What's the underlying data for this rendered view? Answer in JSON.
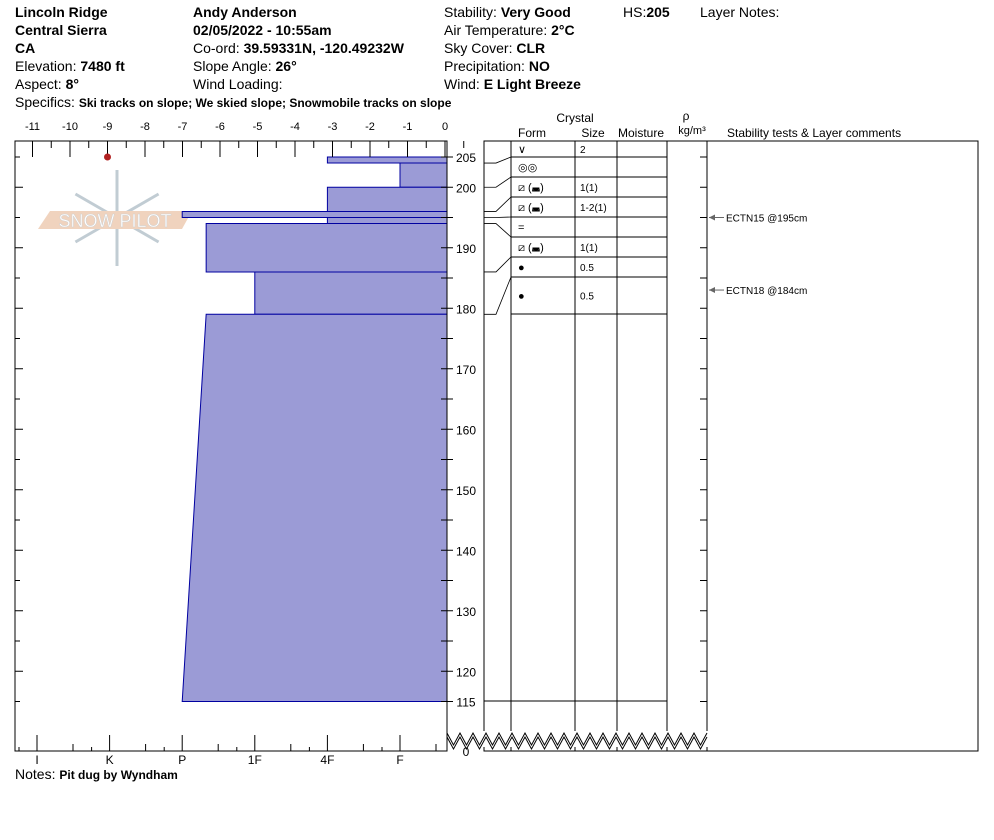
{
  "header": {
    "location": "Lincoln Ridge",
    "range": "Central Sierra",
    "state": "CA",
    "elevation_label": "Elevation:",
    "elevation": "7480 ft",
    "aspect_label": "Aspect:",
    "aspect": "8°",
    "observer": "Andy Anderson",
    "datetime": "02/05/2022 - 10:55am",
    "coord_label": "Co-ord:",
    "coord": "39.59331N, -120.49232W",
    "slope_label": "Slope Angle:",
    "slope": "26°",
    "wind_loading_label": "Wind Loading:",
    "wind_loading": "",
    "stability_label": "Stability:",
    "stability": "Very Good",
    "air_temp_label": "Air Temperature:",
    "air_temp": "2°C",
    "sky_label": "Sky Cover:",
    "sky": "CLR",
    "precip_label": "Precipitation:",
    "precip": "NO",
    "wind_label": "Wind:",
    "wind": "E Light Breeze",
    "hs_label": "HS:",
    "hs": "205",
    "layer_notes_label": "Layer Notes:",
    "specifics_label": "Specifics:",
    "specifics": "Ski tracks on slope; We skied slope; Snowmobile tracks on slope",
    "notes_label": "Notes:",
    "notes": "Pit dug by Wyndham"
  },
  "watermark": "SNOW PILOT",
  "chart_data": {
    "type": "snow-profile",
    "temp_axis": {
      "ticks": [
        -11,
        -10,
        -9,
        -8,
        -7,
        -6,
        -5,
        -4,
        -3,
        -2,
        -1,
        0
      ],
      "range": [
        -11,
        0
      ]
    },
    "hardness_axis": {
      "ticks": [
        "I",
        "K",
        "P",
        "1F",
        "4F",
        "F"
      ]
    },
    "depth_axis": {
      "ticks": [
        205,
        200,
        190,
        180,
        170,
        160,
        150,
        140,
        130,
        120,
        115,
        0
      ],
      "range": [
        115,
        205
      ],
      "break": true
    },
    "temperatures": [
      {
        "depth": 205,
        "temp": -9
      }
    ],
    "layers": [
      {
        "top": 205,
        "bottom": 204,
        "hardness_top": "4F",
        "hardness_bottom": "4F",
        "form": "∨",
        "size": "2"
      },
      {
        "top": 204,
        "bottom": 200,
        "hardness_top": "F",
        "hardness_bottom": "F",
        "form": "◎◎",
        "size": ""
      },
      {
        "top": 200,
        "bottom": 196,
        "hardness_top": "4F",
        "hardness_bottom": "4F",
        "form": "⧄ (◛)",
        "size": "1(1)"
      },
      {
        "top": 196,
        "bottom": 195,
        "hardness_top": "P",
        "hardness_bottom": "P",
        "form": "⧄ (◛)",
        "size": "1-2(1)"
      },
      {
        "top": 195,
        "bottom": 194,
        "hardness_top": "4F",
        "hardness_bottom": "4F",
        "form": "=",
        "size": ""
      },
      {
        "top": 194,
        "bottom": 186,
        "hardness_top": "1F+",
        "hardness_bottom": "1F+",
        "form": "⧄ (◛)",
        "size": "1(1)"
      },
      {
        "top": 186,
        "bottom": 179,
        "hardness_top": "1F",
        "hardness_bottom": "1F",
        "form": "●",
        "size": "0.5"
      },
      {
        "top": 179,
        "bottom": 115,
        "hardness_top": "1F+",
        "hardness_bottom": "P",
        "form": "●",
        "size": "0.5"
      }
    ],
    "stability_tests": [
      {
        "depth": 195,
        "label": "ECTN15 @195cm"
      },
      {
        "depth": 184,
        "label": "ECTN18 @184cm"
      }
    ],
    "columns": {
      "crystal": "Crystal",
      "form": "Form",
      "size": "Size",
      "moisture": "Moisture",
      "rho": "ρ",
      "density_unit": "kg/m³",
      "comments": "Stability tests & Layer comments"
    },
    "colors": {
      "layer_fill": "#9b9bd6",
      "layer_stroke": "#0000a0",
      "temp_point": "#b22222"
    }
  }
}
